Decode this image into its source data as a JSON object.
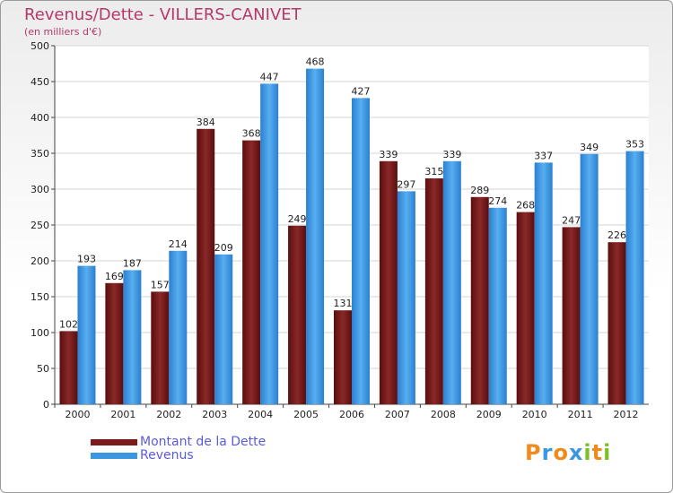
{
  "chart_data": {
    "type": "bar",
    "title": "Revenus/Dette - VILLERS-CANIVET",
    "subtitle": "(en milliers d'€)",
    "categories": [
      "2000",
      "2001",
      "2002",
      "2003",
      "2004",
      "2005",
      "2006",
      "2007",
      "2008",
      "2009",
      "2010",
      "2011",
      "2012"
    ],
    "series": [
      {
        "name": "Montant de la Dette",
        "values": [
          102,
          169,
          157,
          384,
          368,
          249,
          131,
          339,
          315,
          289,
          268,
          247,
          226
        ],
        "color": "#7a1a1a"
      },
      {
        "name": "Revenus",
        "values": [
          193,
          187,
          214,
          209,
          447,
          468,
          427,
          297,
          339,
          274,
          337,
          349,
          353
        ],
        "color": "#3b97e0"
      }
    ],
    "ylim": [
      0,
      500
    ],
    "yticks": [
      0,
      50,
      100,
      150,
      200,
      250,
      300,
      350,
      400,
      450,
      500
    ],
    "grid": true,
    "legend_position": "bottom-left"
  },
  "logo": {
    "text": "Proxiti",
    "letters": [
      {
        "ch": "P",
        "color": "#f08a1c"
      },
      {
        "ch": "r",
        "color": "#3b97e0"
      },
      {
        "ch": "o",
        "color": "#f08a1c"
      },
      {
        "ch": "x",
        "color": "#3b97e0"
      },
      {
        "ch": "i",
        "color": "#7bbf2a"
      },
      {
        "ch": "t",
        "color": "#f08a1c"
      },
      {
        "ch": "i",
        "color": "#7bbf2a"
      }
    ]
  }
}
